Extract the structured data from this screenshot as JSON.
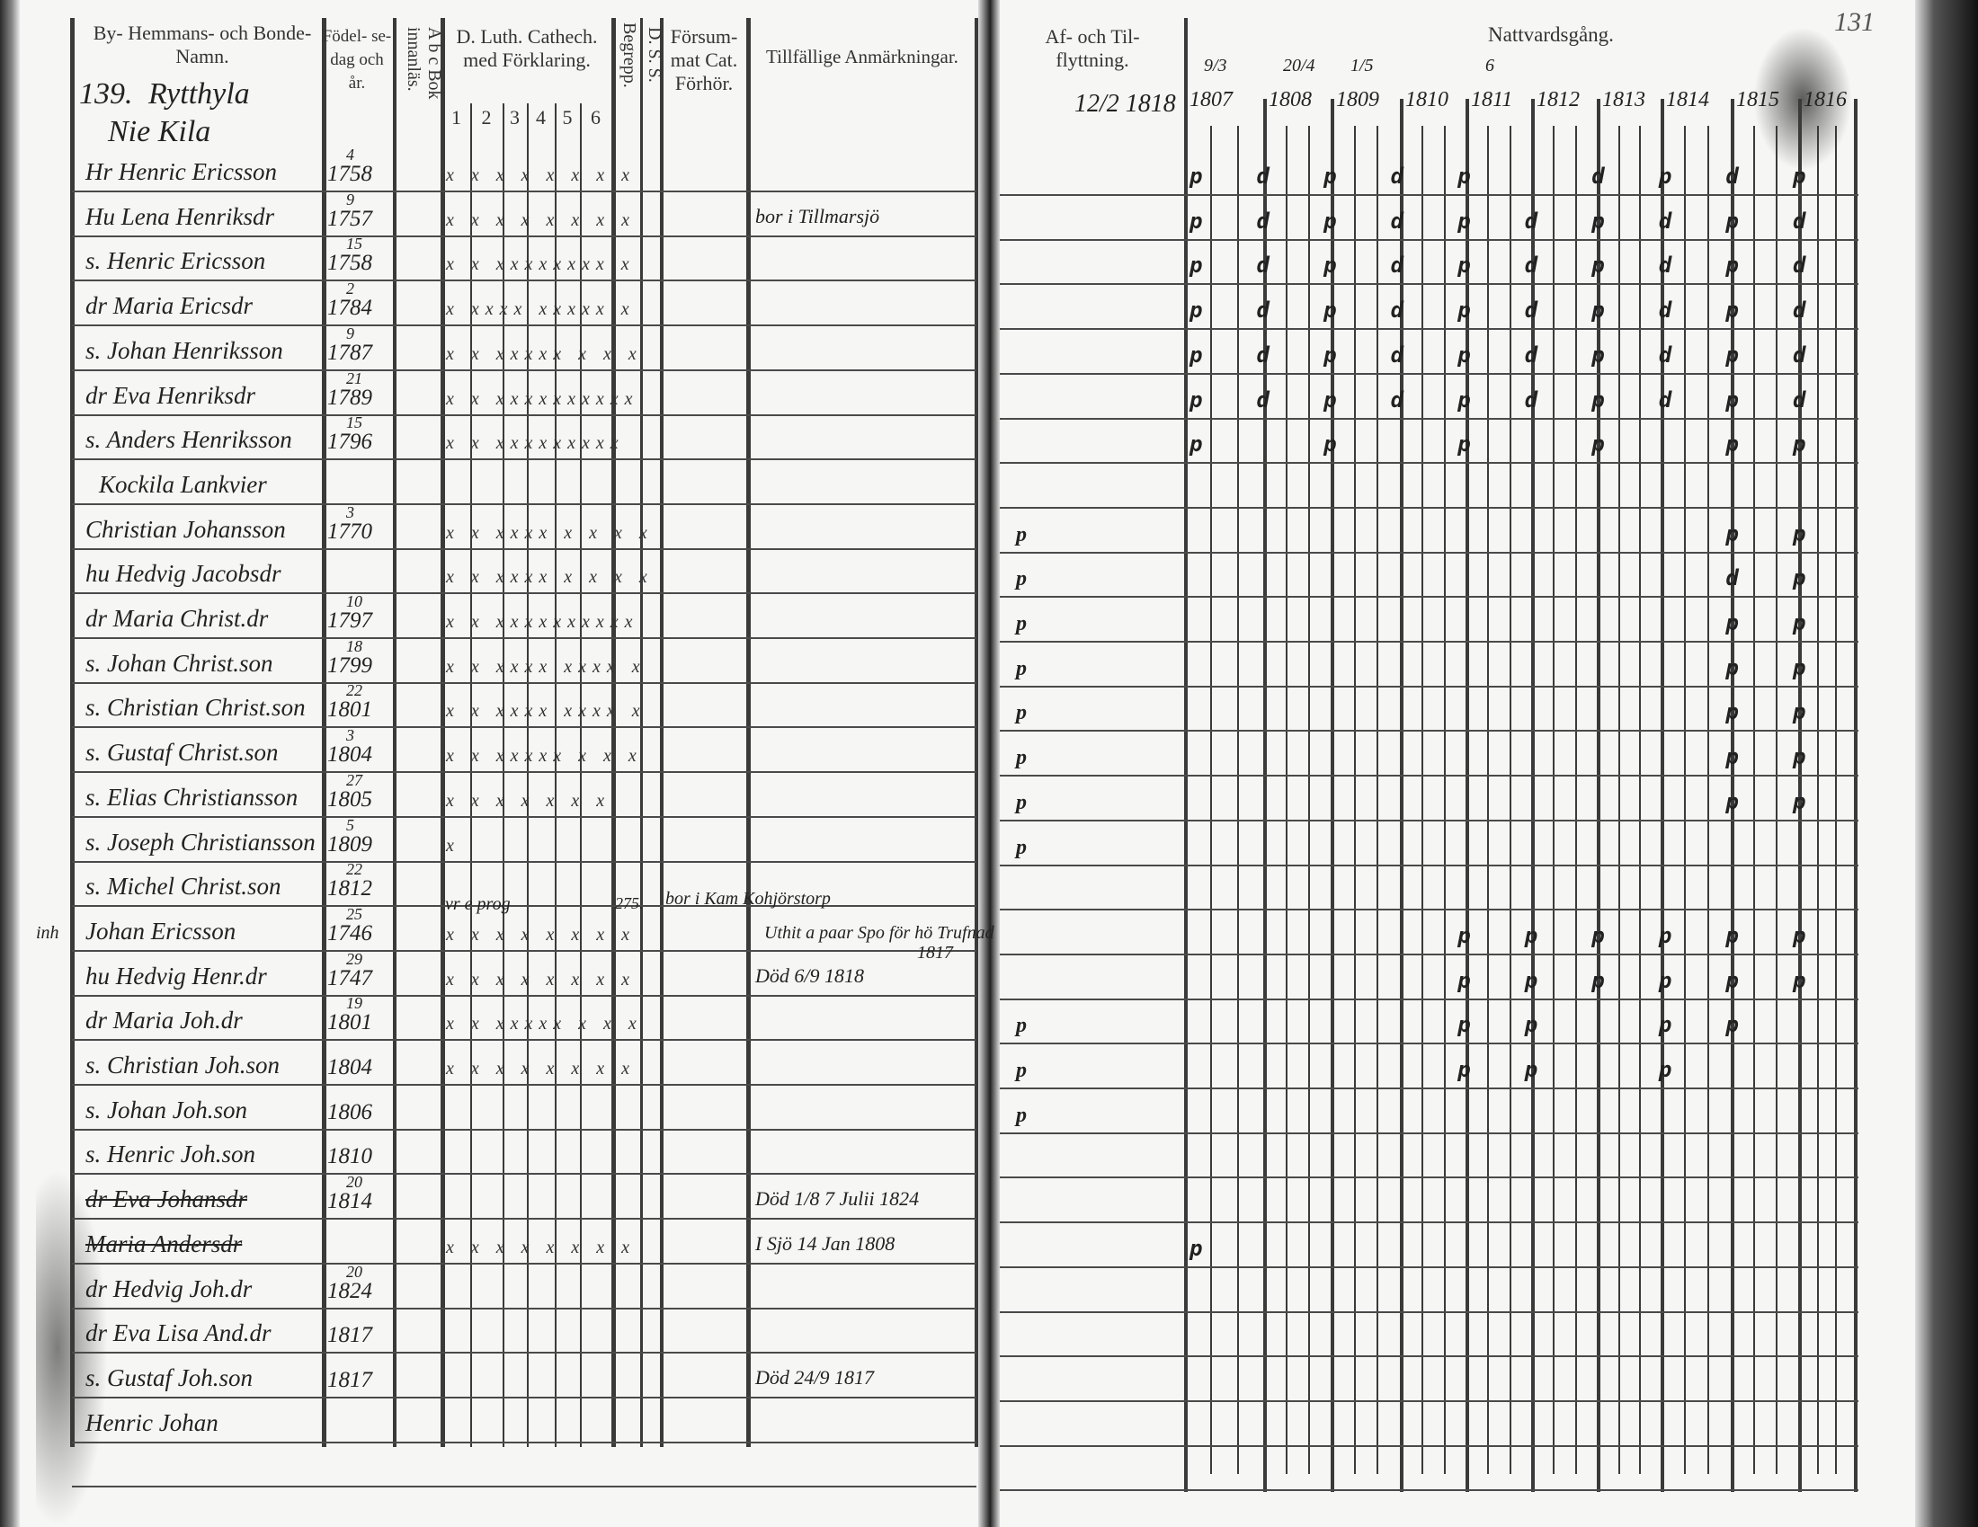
{
  "left_page": {
    "headers": {
      "name": "By- Hemmans- och Bonde- Namn.",
      "birth": "Födel- se- dag och år.",
      "abc": "A b c Bok innanläs.",
      "catechism": "D. Luth. Cathech. med Förklaring.",
      "catechism_cols": [
        "1",
        "2",
        "3",
        "4",
        "5",
        "6"
      ],
      "begrepp": "Begrepp.",
      "dss": "D. S. S.",
      "forsummat": "Försum- mat Cat. Förhör.",
      "remarks": "Tillfällige Anmärkningar."
    },
    "household_no": "139.",
    "village": "Rytthyla",
    "farm": "Nie Kila",
    "rows": [
      {
        "name": "Hr Henric Ericsson",
        "day": "4",
        "year": "1758",
        "marks": "x x x x x x x x"
      },
      {
        "name": "Hu Lena Henriksdr",
        "day": "9",
        "year": "1757",
        "marks": "x x x x x x x x",
        "remark": "bor i Tillmarsjö"
      },
      {
        "name": "s. Henric Ericsson",
        "day": "15",
        "year": "1758",
        "marks": "x x xxxxxxxx x"
      },
      {
        "name": "dr Maria Ericsdr",
        "day": "2",
        "year": "1784",
        "marks": "x xxxx xxxxx x"
      },
      {
        "name": "s. Johan Henriksson",
        "day": "9",
        "year": "1787",
        "marks": "x x xxxxx x x x"
      },
      {
        "name": "dr Eva Henriksdr",
        "day": "21",
        "year": "1789",
        "marks": "x x xxxxxxxxxx"
      },
      {
        "name": "s. Anders Henriksson",
        "day": "15",
        "year": "1796",
        "marks": "x x xxxxxxxxx"
      },
      {
        "name": "Kockila Lankvier"
      },
      {
        "name": "Christian Johansson",
        "day": "3",
        "year": "1770",
        "marks": "x x xxxx x x x x"
      },
      {
        "name": "hu Hedvig Jacobsdr",
        "marks": "x x xxxx x x x x"
      },
      {
        "name": "dr Maria Christ.dr",
        "day": "10",
        "year": "1797",
        "marks": "x x xxxxxxxxxx"
      },
      {
        "name": "s. Johan Christ.son",
        "day": "18",
        "year": "1799",
        "marks": "x x xxxx xxxx x"
      },
      {
        "name": "s. Christian Christ.son",
        "day": "22",
        "year": "1801",
        "marks": "x x xxxx xxxx x"
      },
      {
        "name": "s. Gustaf Christ.son",
        "day": "3",
        "year": "1804",
        "marks": "x x xxxxx x x x"
      },
      {
        "name": "s. Elias Christiansson",
        "day": "27",
        "year": "1805",
        "marks": "x x x x x x x"
      },
      {
        "name": "s. Joseph Christiansson",
        "day": "5",
        "year": "1809",
        "marks": "x"
      },
      {
        "name": "s. Michel Christ.son",
        "day": "22",
        "year": "1812"
      },
      {
        "name": "Johan Ericsson",
        "prefix": "inh",
        "day": "25",
        "year": "1746",
        "marks": "x x x x x x x x",
        "note_above": "vr e prog",
        "begrepp": "275.",
        "remark": "bor i Kam Kohjörstorp",
        "remark2": "Uthit a paar Spo för hö Trufnad"
      },
      {
        "name": "hu Hedvig Henr.dr",
        "day": "29",
        "year": "1747",
        "marks": "x x x x x x x x",
        "remark": "Död 6/9 1818",
        "remark2": "1817"
      },
      {
        "name": "dr Maria Joh.dr",
        "day": "19",
        "year": "1801",
        "marks": "x x xxxxx x x x"
      },
      {
        "name": "s. Christian Joh.son",
        "year": "1804",
        "marks": "x x x x x x x x"
      },
      {
        "name": "s. Johan Joh.son",
        "year": "1806"
      },
      {
        "name": "s. Henric Joh.son",
        "year": "1810"
      },
      {
        "name": "dr Eva Johansdr",
        "day": "20",
        "year": "1814",
        "struck": true,
        "remark": "Död 1/8 7 Julii 1824"
      },
      {
        "name": "Maria Andersdr",
        "struck": true,
        "marks": "x x x x x x x x",
        "remark": "I Sjö 14 Jan 1808"
      },
      {
        "name": "dr Hedvig Joh.dr",
        "day": "20",
        "year": "1824"
      },
      {
        "name": "dr Eva Lisa And.dr",
        "year": "1817"
      },
      {
        "name": "s. Gustaf Joh.son",
        "year": "1817",
        "remark": "Död 24/9 1817"
      },
      {
        "name": "Henric Johan"
      }
    ]
  },
  "right_page": {
    "page_number": "131",
    "headers": {
      "moving": "Af- och Til- flyttning.",
      "communion": "Nattvardsgång."
    },
    "moving_date": "12/2 1818",
    "years": [
      {
        "year": "1807",
        "date": "9/3"
      },
      {
        "year": "1808",
        "date": "20/4"
      },
      {
        "year": "1809",
        "date": "1/5"
      },
      {
        "year": "1810",
        "date": ""
      },
      {
        "year": "1811",
        "date": "6"
      },
      {
        "year": "1812",
        "date": ""
      },
      {
        "year": "1813",
        "date": ""
      },
      {
        "year": "1814",
        "date": ""
      },
      {
        "year": "1815",
        "date": ""
      },
      {
        "year": "1816",
        "date": ""
      }
    ],
    "moving_marks": [
      "",
      "",
      "",
      "",
      "",
      "",
      "",
      "",
      "p",
      "p",
      "p",
      "p",
      "p",
      "p",
      "p",
      "p",
      "",
      "",
      "",
      "p",
      "p",
      "p",
      "",
      "",
      "",
      "",
      "",
      "",
      ""
    ],
    "communion": [
      "pdpdp dpdp",
      "pdpdpdpdpd",
      "pdpdpdpdpd",
      "pdpdpdpdpd",
      "pdpdpdpdpd",
      "pdpdpdpdpd",
      "p p p p pp",
      "",
      "        pp",
      "        dp",
      "        pp",
      "        pp",
      "        pp",
      "        pp",
      "        pp",
      "",
      "",
      "    pppppp",
      "    pppppp",
      "    pp pp ",
      "    pp p  ",
      "",
      "",
      "",
      "p         ",
      "",
      "",
      "",
      ""
    ]
  }
}
